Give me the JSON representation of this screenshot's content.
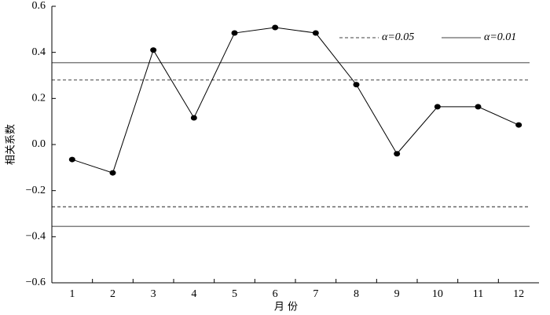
{
  "chart_data": {
    "type": "line",
    "x_label": "月 份",
    "y_label": "相关系数",
    "categories": [
      "1",
      "2",
      "3",
      "4",
      "5",
      "6",
      "7",
      "8",
      "9",
      "10",
      "11",
      "12"
    ],
    "series": [
      {
        "color": "#000000",
        "values": [
          -0.065,
          -0.123,
          0.41,
          0.116,
          0.484,
          0.508,
          0.484,
          0.26,
          -0.04,
          0.164,
          0.164,
          0.085
        ]
      }
    ],
    "reference_lines": [
      {
        "name": "α=0.05",
        "style": "dashed",
        "values": [
          0.28,
          -0.27
        ]
      },
      {
        "name": "α=0.01",
        "style": "solid",
        "values": [
          0.355,
          -0.355
        ]
      }
    ],
    "ylim": [
      -0.6,
      0.6
    ],
    "yticks": [
      {
        "value": -0.6,
        "label": "−0.6"
      },
      {
        "value": -0.4,
        "label": "−0.4"
      },
      {
        "value": -0.2,
        "label": "−0.2"
      },
      {
        "value": 0,
        "label": "0.0"
      },
      0.2,
      0.4,
      0.6
    ],
    "legend": "upper right"
  }
}
